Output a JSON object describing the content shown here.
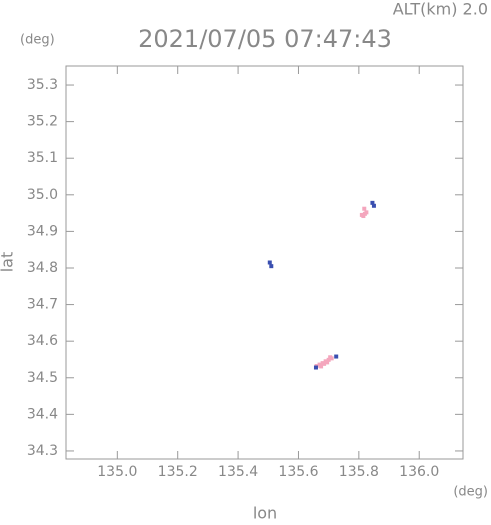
{
  "chart_data": {
    "type": "scatter",
    "title": "2021/07/05 07:47:43",
    "subtitle": "ALT(km) 2.0",
    "y_unit": "(deg)",
    "x_unit": "(deg)",
    "x_label": "lon",
    "y_label": "lat",
    "xlim": [
      134.83,
      136.145
    ],
    "ylim": [
      34.278,
      35.352
    ],
    "xticks": [
      {
        "value": 135,
        "label": "135.0"
      },
      135.2,
      135.4,
      135.6,
      135.8,
      {
        "value": 136,
        "label": "136.0"
      }
    ],
    "yticks": [
      34.3,
      34.4,
      34.5,
      34.6,
      34.7,
      34.8,
      34.9,
      {
        "value": 35,
        "label": "35.0"
      },
      35.1,
      35.2,
      35.3
    ],
    "series": [
      {
        "color": "#f4a6bd",
        "x": [
          135.66,
          135.67,
          135.68,
          135.69,
          135.7,
          135.71,
          135.675,
          135.685,
          135.695,
          135.705,
          135.81,
          135.815,
          135.82,
          135.825,
          135.818
        ],
        "y": [
          34.532,
          34.536,
          34.54,
          34.545,
          34.549,
          34.553,
          34.531,
          34.538,
          34.542,
          34.556,
          34.945,
          34.942,
          34.948,
          34.952,
          34.962
        ]
      },
      {
        "color": "#3a4fb0",
        "x": [
          135.505,
          135.51,
          135.845,
          135.85,
          135.725,
          135.658
        ],
        "y": [
          34.815,
          34.805,
          34.978,
          34.97,
          34.558,
          34.528
        ]
      }
    ]
  }
}
